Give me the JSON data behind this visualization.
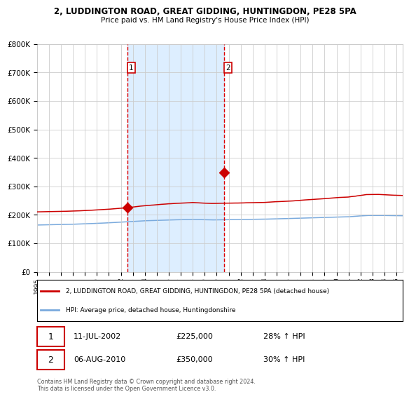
{
  "title1": "2, LUDDINGTON ROAD, GREAT GIDDING, HUNTINGDON, PE28 5PA",
  "title2": "Price paid vs. HM Land Registry's House Price Index (HPI)",
  "legend_label_red": "2, LUDDINGTON ROAD, GREAT GIDDING, HUNTINGDON, PE28 5PA (detached house)",
  "legend_label_blue": "HPI: Average price, detached house, Huntingdonshire",
  "annotation1_date": "11-JUL-2002",
  "annotation1_price": "£225,000",
  "annotation1_hpi": "28% ↑ HPI",
  "annotation2_date": "06-AUG-2010",
  "annotation2_price": "£350,000",
  "annotation2_hpi": "30% ↑ HPI",
  "footer1": "Contains HM Land Registry data © Crown copyright and database right 2024.",
  "footer2": "This data is licensed under the Open Government Licence v3.0.",
  "vline1_year": 2002.53,
  "vline2_year": 2010.59,
  "sale1_year": 2002.53,
  "sale1_price": 225000,
  "sale2_year": 2010.59,
  "sale2_price": 350000,
  "ylim_max": 800000,
  "xlim_start": 1995.0,
  "xlim_end": 2025.5,
  "red_color": "#cc0000",
  "blue_color": "#7aaadd",
  "shade_color": "#ddeeff",
  "grid_color": "#cccccc",
  "vline_color": "#dd0000",
  "background_color": "#ffffff"
}
